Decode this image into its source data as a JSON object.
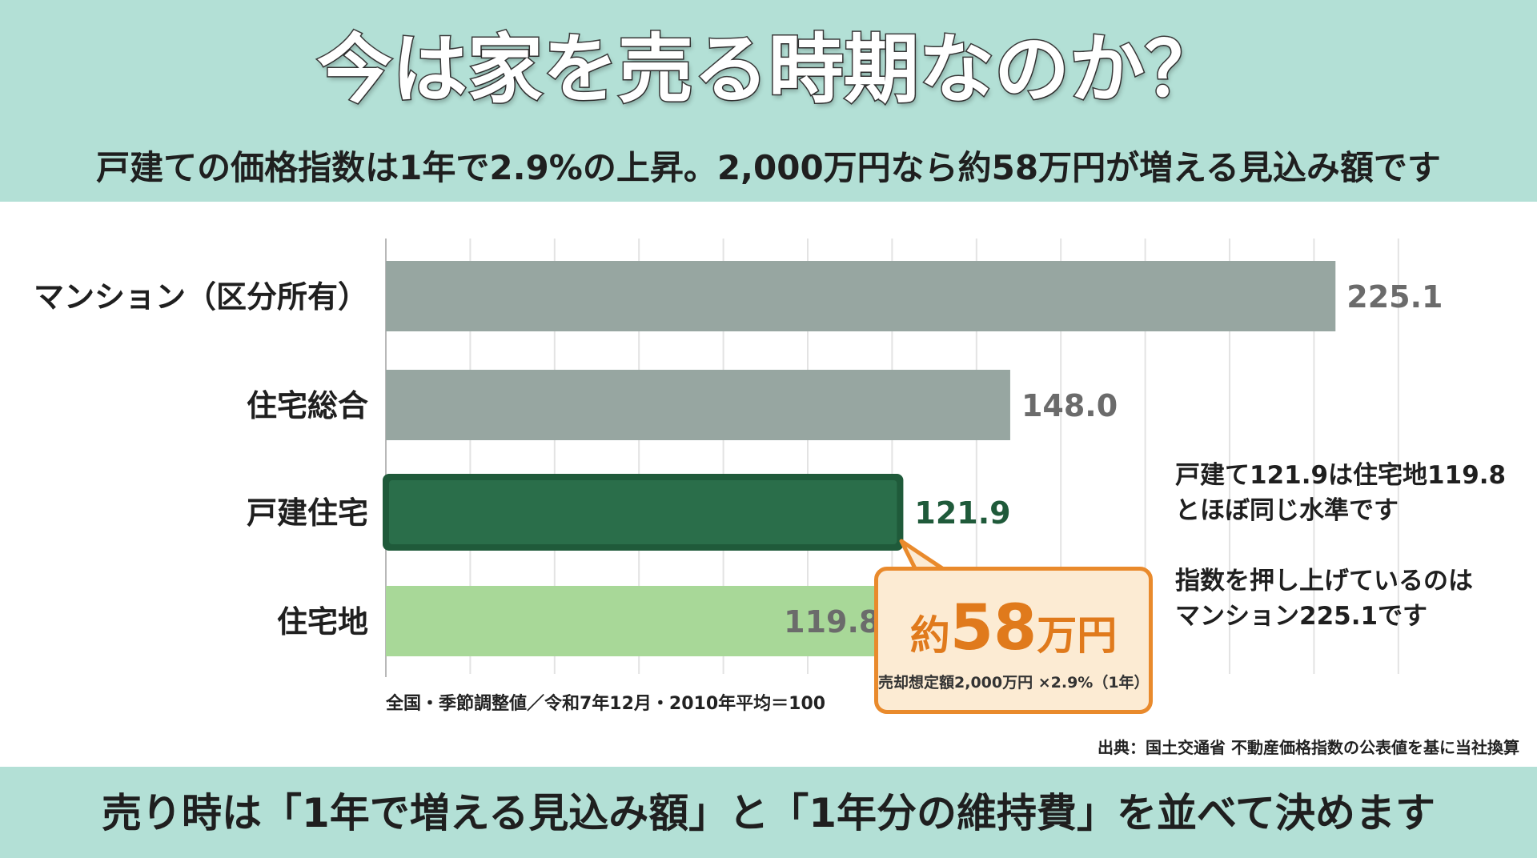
{
  "header": {
    "title": "今は家を売る時期なのか？",
    "subtitle": "戸建ての価格指数は1年で2.9%の上昇。2,000万円なら約58万円が増える見込み額です"
  },
  "chart_data": {
    "type": "bar",
    "orientation": "horizontal",
    "categories": [
      "マンション（区分所有）",
      "住宅総合",
      "戸建住宅",
      "住宅地"
    ],
    "values": [
      225.1,
      148.0,
      121.9,
      119.8
    ],
    "value_labels": [
      "225.1",
      "148.0",
      "121.9",
      "119.8"
    ],
    "xlim": [
      0,
      250
    ],
    "grid": true,
    "highlight": "戸建住宅",
    "colors": [
      "#97a6a1",
      "#97a6a1",
      "#2a6e4a",
      "#a8d898"
    ],
    "label_colors": [
      "#6b6b6b",
      "#6b6b6b",
      "#1f5a3a",
      "#6b6b6b"
    ],
    "note": "全国・季節調整値／令和7年12月・2010年平均＝100"
  },
  "annotations": {
    "note1": [
      "戸建て121.9は住宅地119.8",
      "とほぼ同じ水準です"
    ],
    "note2": [
      "指数を押し上げているのは",
      "マンション225.1です"
    ]
  },
  "callout": {
    "prefix": "約",
    "number": "58",
    "unit": "万円",
    "sub": "売却想定額2,000万円 ×2.9%（1年）",
    "accent_color": "#e07a1c"
  },
  "source": "出典：国土交通省 不動産価格指数の公表値を基に当社換算",
  "footer": {
    "text": "売り時は「1年で増える見込み額」と「1年分の維持費」を並べて決めます"
  }
}
